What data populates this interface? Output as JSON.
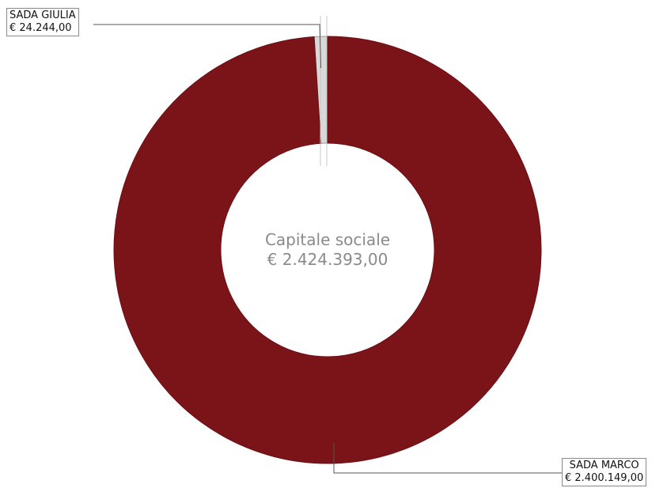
{
  "chart_data": {
    "type": "pie",
    "center_label": "Capitale sociale",
    "center_value": "€ 2.424.393,00",
    "categories": [
      "SADA GIULIA",
      "SADA MARCO"
    ],
    "values": [
      24244.0,
      2400149.0
    ],
    "value_labels": [
      "€ 24.244,00",
      "€ 2.400.149,00"
    ],
    "colors": [
      "#d8d8d8",
      "#7b1419"
    ]
  }
}
